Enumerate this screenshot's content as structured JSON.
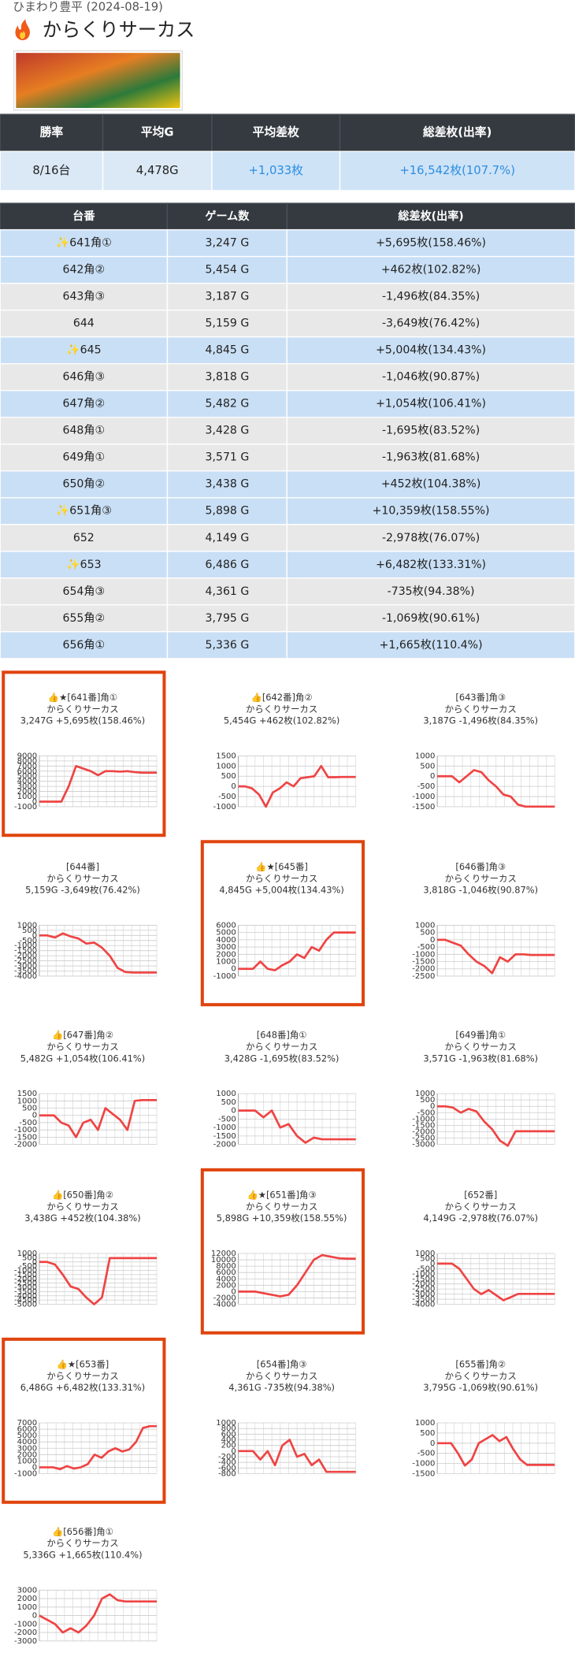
{
  "header": {
    "subtitle": "ひまわり豊平 (2024-08-19)",
    "title": "からくりサーカス"
  },
  "summary": {
    "headers": [
      "勝率",
      "平均G",
      "平均差枚",
      "総差枚(出率)"
    ],
    "row": [
      "8/16台",
      "4,478G",
      "+1,033枚",
      "+16,542枚(107.7%)"
    ]
  },
  "table": {
    "headers": [
      "台番",
      "ゲーム数",
      "総差枚(出率)"
    ],
    "rows": [
      [
        "✨641角①",
        "3,247 G",
        "+5,695枚(158.46%)"
      ],
      [
        "642角②",
        "5,454 G",
        "+462枚(102.82%)"
      ],
      [
        "643角③",
        "3,187 G",
        "-1,496枚(84.35%)"
      ],
      [
        "644",
        "5,159 G",
        "-3,649枚(76.42%)"
      ],
      [
        "✨645",
        "4,845 G",
        "+5,004枚(134.43%)"
      ],
      [
        "646角③",
        "3,818 G",
        "-1,046枚(90.87%)"
      ],
      [
        "647角②",
        "5,482 G",
        "+1,054枚(106.41%)"
      ],
      [
        "648角①",
        "3,428 G",
        "-1,695枚(83.52%)"
      ],
      [
        "649角①",
        "3,571 G",
        "-1,963枚(81.68%)"
      ],
      [
        "650角②",
        "3,438 G",
        "+452枚(104.38%)"
      ],
      [
        "✨651角③",
        "5,898 G",
        "+10,359枚(158.55%)"
      ],
      [
        "652",
        "4,149 G",
        "-2,978枚(76.07%)"
      ],
      [
        "✨653",
        "6,486 G",
        "+6,482枚(133.31%)"
      ],
      [
        "654角③",
        "4,361 G",
        "-735枚(94.38%)"
      ],
      [
        "655角②",
        "3,795 G",
        "-1,069枚(90.61%)"
      ],
      [
        "656角①",
        "5,336 G",
        "+1,665枚(110.4%)"
      ]
    ]
  },
  "graphs": [
    {
      "title": "👍★[641番]角①",
      "model": "からくりサーカス",
      "stats": "3,247G +5,695枚(158.46%)",
      "highlight": true,
      "ylim": [
        -1000,
        9000
      ],
      "yticks": [
        9000,
        8000,
        7000,
        6000,
        5000,
        4000,
        3000,
        2000,
        1000,
        0,
        -1000
      ],
      "values": [
        0,
        0,
        0,
        0,
        3000,
        7000,
        6500,
        6000,
        5200,
        6000,
        6000,
        5900,
        6000,
        5800,
        5700,
        5700,
        5695
      ]
    },
    {
      "title": "👍[642番]角②",
      "model": "からくりサーカス",
      "stats": "5,454G +462枚(102.82%)",
      "ylim": [
        -1000,
        1500
      ],
      "yticks": [
        1500,
        1000,
        500,
        0,
        -500,
        -1000
      ],
      "values": [
        0,
        0,
        -100,
        -400,
        -1000,
        -300,
        -100,
        200,
        0,
        400,
        450,
        500,
        1000,
        450,
        450,
        462,
        462,
        462
      ]
    },
    {
      "title": "[643番]角③",
      "model": "からくりサーカス",
      "stats": "3,187G -1,496枚(84.35%)",
      "ylim": [
        -1500,
        1000
      ],
      "yticks": [
        1000,
        500,
        0,
        -500,
        -1000,
        -1500
      ],
      "values": [
        0,
        0,
        0,
        -300,
        0,
        300,
        200,
        -200,
        -500,
        -900,
        -1000,
        -1400,
        -1496,
        -1496,
        -1496,
        -1496,
        -1496
      ]
    },
    {
      "title": "[644番]",
      "model": "からくりサーカス",
      "stats": "5,159G -3,649枚(76.42%)",
      "ylim": [
        -4000,
        1000
      ],
      "yticks": [
        1000,
        500,
        0,
        -500,
        -1000,
        -1500,
        -2000,
        -2500,
        -3000,
        -3500,
        -4000
      ],
      "values": [
        0,
        0,
        -200,
        200,
        -100,
        -300,
        -800,
        -700,
        -1200,
        -2000,
        -3200,
        -3600,
        -3649,
        -3649,
        -3649,
        -3649
      ]
    },
    {
      "title": "👍★[645番]",
      "model": "からくりサーカス",
      "stats": "4,845G +5,004枚(134.43%)",
      "highlight": true,
      "ylim": [
        -1000,
        6000
      ],
      "yticks": [
        6000,
        5000,
        4000,
        3000,
        2000,
        1000,
        0,
        -1000
      ],
      "values": [
        0,
        0,
        0,
        1000,
        0,
        -200,
        500,
        1000,
        2000,
        1500,
        3000,
        2500,
        4000,
        5000,
        5000,
        5004,
        5004
      ]
    },
    {
      "title": "[646番]角③",
      "model": "からくりサーカス",
      "stats": "3,818G -1,046枚(90.87%)",
      "ylim": [
        -2500,
        1000
      ],
      "yticks": [
        1000,
        500,
        0,
        -500,
        -1000,
        -1500,
        -2000,
        -2500
      ],
      "values": [
        0,
        0,
        -200,
        -400,
        -1000,
        -1500,
        -1800,
        -2300,
        -1200,
        -1500,
        -1000,
        -1000,
        -1046,
        -1046,
        -1046,
        -1046
      ]
    },
    {
      "title": "👍[647番]角②",
      "model": "からくりサーカス",
      "stats": "5,482G +1,054枚(106.41%)",
      "ylim": [
        -2000,
        1500
      ],
      "yticks": [
        1500,
        1000,
        500,
        0,
        -500,
        -1000,
        -1500,
        -2000
      ],
      "values": [
        0,
        0,
        0,
        -500,
        -700,
        -1500,
        -500,
        -300,
        -1000,
        500,
        100,
        -300,
        -1000,
        1000,
        1054,
        1054,
        1054
      ]
    },
    {
      "title": "[648番]角①",
      "model": "からくりサーカス",
      "stats": "3,428G -1,695枚(83.52%)",
      "ylim": [
        -2000,
        1000
      ],
      "yticks": [
        1000,
        500,
        0,
        -500,
        -1000,
        -1500,
        -2000
      ],
      "values": [
        0,
        0,
        0,
        -400,
        0,
        -1000,
        -800,
        -1500,
        -1900,
        -1600,
        -1695,
        -1695,
        -1695,
        -1695,
        -1695
      ]
    },
    {
      "title": "[649番]角①",
      "model": "からくりサーカス",
      "stats": "3,571G -1,963枚(81.68%)",
      "ylim": [
        -3000,
        1000
      ],
      "yticks": [
        1000,
        500,
        0,
        -500,
        -1000,
        -1500,
        -2000,
        -2500,
        -3000
      ],
      "values": [
        0,
        0,
        -100,
        -500,
        -200,
        -400,
        -1200,
        -1800,
        -2700,
        -3100,
        -1963,
        -1963,
        -1963,
        -1963,
        -1963,
        -1963
      ]
    },
    {
      "title": "👍[650番]角②",
      "model": "からくりサーカス",
      "stats": "3,438G +452枚(104.38%)",
      "ylim": [
        -5000,
        1000
      ],
      "yticks": [
        1000,
        500,
        0,
        -500,
        -1000,
        -1500,
        -2000,
        -2500,
        -3000,
        -3500,
        -4000,
        -4500,
        -5000
      ],
      "values": [
        0,
        0,
        -300,
        -1500,
        -2900,
        -3200,
        -4200,
        -5000,
        -4200,
        452,
        452,
        452,
        452,
        452,
        452,
        452
      ]
    },
    {
      "title": "👍★[651番]角③",
      "model": "からくりサーカス",
      "stats": "5,898G +10,359枚(158.55%)",
      "highlight": true,
      "ylim": [
        -4000,
        12000
      ],
      "yticks": [
        12000,
        10000,
        8000,
        6000,
        4000,
        2000,
        0,
        -2000,
        -4000
      ],
      "values": [
        0,
        0,
        0,
        -500,
        -1000,
        -1500,
        -1000,
        2000,
        6000,
        10000,
        11500,
        11000,
        10500,
        10359,
        10359
      ]
    },
    {
      "title": "[652番]",
      "model": "からくりサーカス",
      "stats": "4,149G -2,978枚(76.07%)",
      "ylim": [
        -4000,
        1000
      ],
      "yticks": [
        1000,
        500,
        0,
        -500,
        -1000,
        -1500,
        -2000,
        -2500,
        -3000,
        -3500,
        -4000
      ],
      "values": [
        0,
        0,
        0,
        -500,
        -1500,
        -2500,
        -3000,
        -2600,
        -3100,
        -3600,
        -3300,
        -2978,
        -2978,
        -2978,
        -2978,
        -2978,
        -2978
      ]
    },
    {
      "title": "👍★[653番]",
      "model": "からくりサーカス",
      "stats": "6,486G +6,482枚(133.31%)",
      "highlight": true,
      "ylim": [
        -1000,
        7000
      ],
      "yticks": [
        7000,
        6000,
        5000,
        4000,
        3000,
        2000,
        1000,
        0,
        -1000
      ],
      "values": [
        0,
        0,
        0,
        -300,
        200,
        -200,
        0,
        500,
        2000,
        1500,
        2500,
        3000,
        2500,
        2800,
        4000,
        6200,
        6482,
        6482
      ]
    },
    {
      "title": "[654番]角③",
      "model": "からくりサーカス",
      "stats": "4,361G -735枚(94.38%)",
      "ylim": [
        -800,
        1000
      ],
      "yticks": [
        1000,
        800,
        600,
        400,
        200,
        0,
        -200,
        -400,
        -600,
        -800
      ],
      "values": [
        0,
        0,
        0,
        -300,
        0,
        -500,
        200,
        400,
        -200,
        -100,
        -500,
        -300,
        -735,
        -735,
        -735,
        -735,
        -735
      ]
    },
    {
      "title": "[655番]角②",
      "model": "からくりサーカス",
      "stats": "3,795G -1,069枚(90.61%)",
      "ylim": [
        -1500,
        1000
      ],
      "yticks": [
        1000,
        500,
        0,
        -500,
        -1000,
        -1500
      ],
      "values": [
        0,
        0,
        0,
        -500,
        -1100,
        -800,
        0,
        200,
        400,
        100,
        300,
        -300,
        -800,
        -1069,
        -1069,
        -1069,
        -1069,
        -1069
      ]
    },
    {
      "title": "👍[656番]角①",
      "model": "からくりサーカス",
      "stats": "5,336G +1,665枚(110.4%)",
      "ylim": [
        -3000,
        3000
      ],
      "yticks": [
        3000,
        2000,
        1000,
        0,
        -1000,
        -2000,
        -3000
      ],
      "values": [
        0,
        -500,
        -1000,
        -2000,
        -1500,
        -2000,
        -1200,
        0,
        2000,
        2500,
        1800,
        1665,
        1665,
        1665,
        1665,
        1665
      ]
    }
  ]
}
